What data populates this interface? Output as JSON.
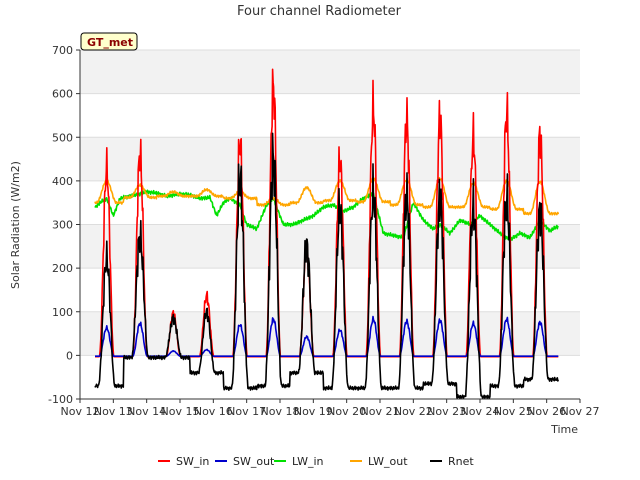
{
  "chart_data": {
    "type": "line",
    "title": "Four channel Radiometer",
    "xlabel": "Time",
    "ylabel": "Solar Radiation (W/m2)",
    "xlim": [
      12,
      27
    ],
    "ylim": [
      -100,
      700
    ],
    "x_ticks": [
      12,
      13,
      14,
      15,
      16,
      17,
      18,
      19,
      20,
      21,
      22,
      23,
      24,
      25,
      26,
      27
    ],
    "x_tick_labels": [
      "Nov 12",
      "Nov 13",
      "Nov 14",
      "Nov 15",
      "Nov 16",
      "Nov 17",
      "Nov 18",
      "Nov 19",
      "Nov 20",
      "Nov 21",
      "Nov 22",
      "Nov 23",
      "Nov 24",
      "Nov 25",
      "Nov 26",
      "Nov 27"
    ],
    "y_ticks": [
      -100,
      0,
      100,
      200,
      300,
      400,
      500,
      600,
      700
    ],
    "grid": true,
    "legend_position": "bottom",
    "station_label": "GT_met",
    "series": [
      {
        "name": "SW_in",
        "color": "#ff0000",
        "days": [
          12.8,
          13.8,
          14.8,
          15.8,
          16.8,
          17.8,
          18.8,
          19.8,
          20.8,
          21.8,
          22.8,
          23.8,
          24.8,
          25.8
        ],
        "peaks": [
          430,
          465,
          100,
          140,
          490,
          620,
          250,
          450,
          570,
          545,
          548,
          505,
          560,
          510
        ]
      },
      {
        "name": "SW_out",
        "color": "#0000cc",
        "days": [
          12.8,
          13.8,
          14.8,
          15.8,
          16.8,
          17.8,
          18.8,
          19.8,
          20.8,
          21.8,
          22.8,
          23.8,
          24.8,
          25.8
        ],
        "peaks": [
          65,
          75,
          12,
          15,
          72,
          85,
          45,
          60,
          85,
          80,
          82,
          75,
          85,
          78
        ]
      },
      {
        "name": "LW_in",
        "color": "#00e000",
        "x": [
          12.4,
          12.6,
          12.8,
          13.0,
          13.2,
          13.5,
          13.8,
          14.0,
          14.3,
          14.6,
          15.0,
          15.3,
          15.6,
          15.9,
          16.1,
          16.3,
          16.5,
          16.8,
          17.0,
          17.3,
          17.6,
          17.8,
          18.1,
          18.4,
          18.7,
          19.0,
          19.3,
          19.6,
          19.9,
          20.2,
          20.5,
          20.8,
          21.1,
          21.4,
          21.7,
          22.0,
          22.3,
          22.6,
          22.8,
          23.1,
          23.4,
          23.7,
          24.0,
          24.3,
          24.6,
          24.9,
          25.2,
          25.5,
          25.8,
          26.1,
          26.3
        ],
        "y": [
          335,
          350,
          360,
          320,
          360,
          365,
          370,
          375,
          372,
          365,
          370,
          368,
          360,
          362,
          320,
          350,
          360,
          345,
          300,
          290,
          345,
          360,
          300,
          300,
          310,
          320,
          340,
          345,
          330,
          340,
          360,
          370,
          280,
          275,
          270,
          350,
          310,
          290,
          300,
          280,
          310,
          300,
          320,
          300,
          280,
          265,
          280,
          270,
          310,
          285,
          295
        ]
      },
      {
        "name": "LW_out",
        "color": "#ffa500",
        "days": [
          12.8,
          13.8,
          14.8,
          15.8,
          16.8,
          17.8,
          18.8,
          19.8,
          20.8,
          21.8,
          22.8,
          23.8,
          24.8,
          25.8
        ],
        "peaks": [
          400,
          390,
          375,
          380,
          375,
          360,
          385,
          400,
          405,
          402,
          405,
          395,
          400,
          398
        ],
        "bases": [
          350,
          362,
          365,
          365,
          360,
          345,
          350,
          355,
          352,
          345,
          340,
          340,
          335,
          325
        ]
      },
      {
        "name": "Rnet",
        "color": "#000000",
        "days": [
          12.8,
          13.8,
          14.8,
          15.8,
          16.8,
          17.8,
          18.8,
          19.8,
          20.8,
          21.8,
          22.8,
          23.8,
          24.8,
          25.8
        ],
        "peaks": [
          220,
          270,
          85,
          100,
          400,
          450,
          250,
          335,
          370,
          365,
          360,
          340,
          360,
          330
        ],
        "nights": [
          -70,
          -5,
          -5,
          -40,
          -75,
          -70,
          -40,
          -75,
          -75,
          -75,
          -65,
          -95,
          -70,
          -55
        ]
      }
    ]
  }
}
